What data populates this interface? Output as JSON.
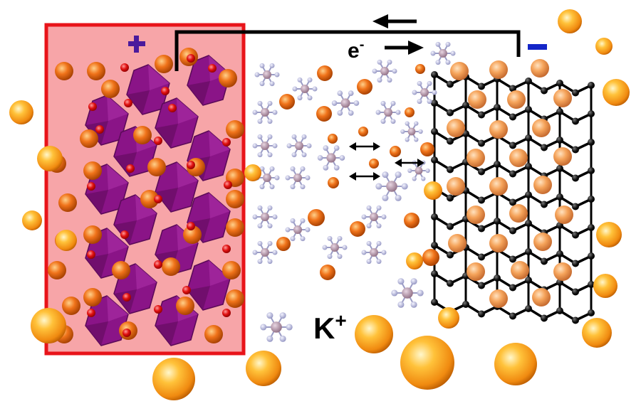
{
  "labels": {
    "positive_sign": "+",
    "negative_sign": "−",
    "electron_base": "e",
    "electron_sup": "-",
    "ion_base": "K",
    "ion_sup": "+"
  },
  "colors": {
    "cathode_frame": "#e8141a",
    "cathode_fill": "#f7a5a8",
    "octahedra": "#8a1487",
    "oxygen": "#e01010",
    "potassium": "#f59520",
    "anion_center": "#a8899b",
    "anion_ligand": "#b7b8d8",
    "graphite_atom": "#111111",
    "wire": "#000000",
    "positive_sign": "#4b1a9c",
    "negative_sign": "#1426c8"
  },
  "icons": [
    "octahedron-shape",
    "potassium-ion-sphere",
    "pf6-anion-shape",
    "graphite-atom",
    "arrow-icon"
  ]
}
